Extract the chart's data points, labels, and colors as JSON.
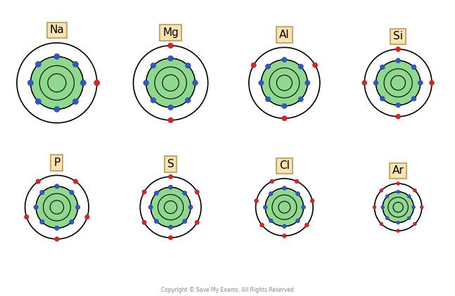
{
  "elements": [
    "Na",
    "Mg",
    "Al",
    "Si",
    "P",
    "S",
    "Cl",
    "Ar"
  ],
  "label_color": "#FAE5B0",
  "label_border": "#C8A870",
  "bg_color": "#FFFFFF",
  "green_fill": "#8FD98F",
  "blue_dot": "#3355CC",
  "red_dot": "#DD2222",
  "copyright": "Copyright © Save My Exams. All Rights Reserved",
  "atoms": [
    {
      "name": "Na",
      "outer_r": 0.88,
      "mid_r": 0.58,
      "mid2_r": 0.38,
      "nuc_r": 0.2,
      "n_outer": 1,
      "n_inner": 8
    },
    {
      "name": "Mg",
      "outer_r": 0.82,
      "mid_r": 0.54,
      "mid2_r": 0.35,
      "nuc_r": 0.18,
      "n_outer": 2,
      "n_inner": 8
    },
    {
      "name": "Al",
      "outer_r": 0.78,
      "mid_r": 0.51,
      "mid2_r": 0.33,
      "nuc_r": 0.17,
      "n_outer": 3,
      "n_inner": 8
    },
    {
      "name": "Si",
      "outer_r": 0.74,
      "mid_r": 0.49,
      "mid2_r": 0.31,
      "nuc_r": 0.16,
      "n_outer": 4,
      "n_inner": 8
    },
    {
      "name": "P",
      "outer_r": 0.7,
      "mid_r": 0.46,
      "mid2_r": 0.3,
      "nuc_r": 0.15,
      "n_outer": 5,
      "n_inner": 8
    },
    {
      "name": "S",
      "outer_r": 0.67,
      "mid_r": 0.44,
      "mid2_r": 0.28,
      "nuc_r": 0.14,
      "n_outer": 6,
      "n_inner": 8
    },
    {
      "name": "Cl",
      "outer_r": 0.63,
      "mid_r": 0.42,
      "mid2_r": 0.27,
      "nuc_r": 0.13,
      "n_outer": 7,
      "n_inner": 8
    },
    {
      "name": "Ar",
      "outer_r": 0.52,
      "mid_r": 0.34,
      "mid2_r": 0.22,
      "nuc_r": 0.11,
      "n_outer": 8,
      "n_inner": 8
    }
  ]
}
